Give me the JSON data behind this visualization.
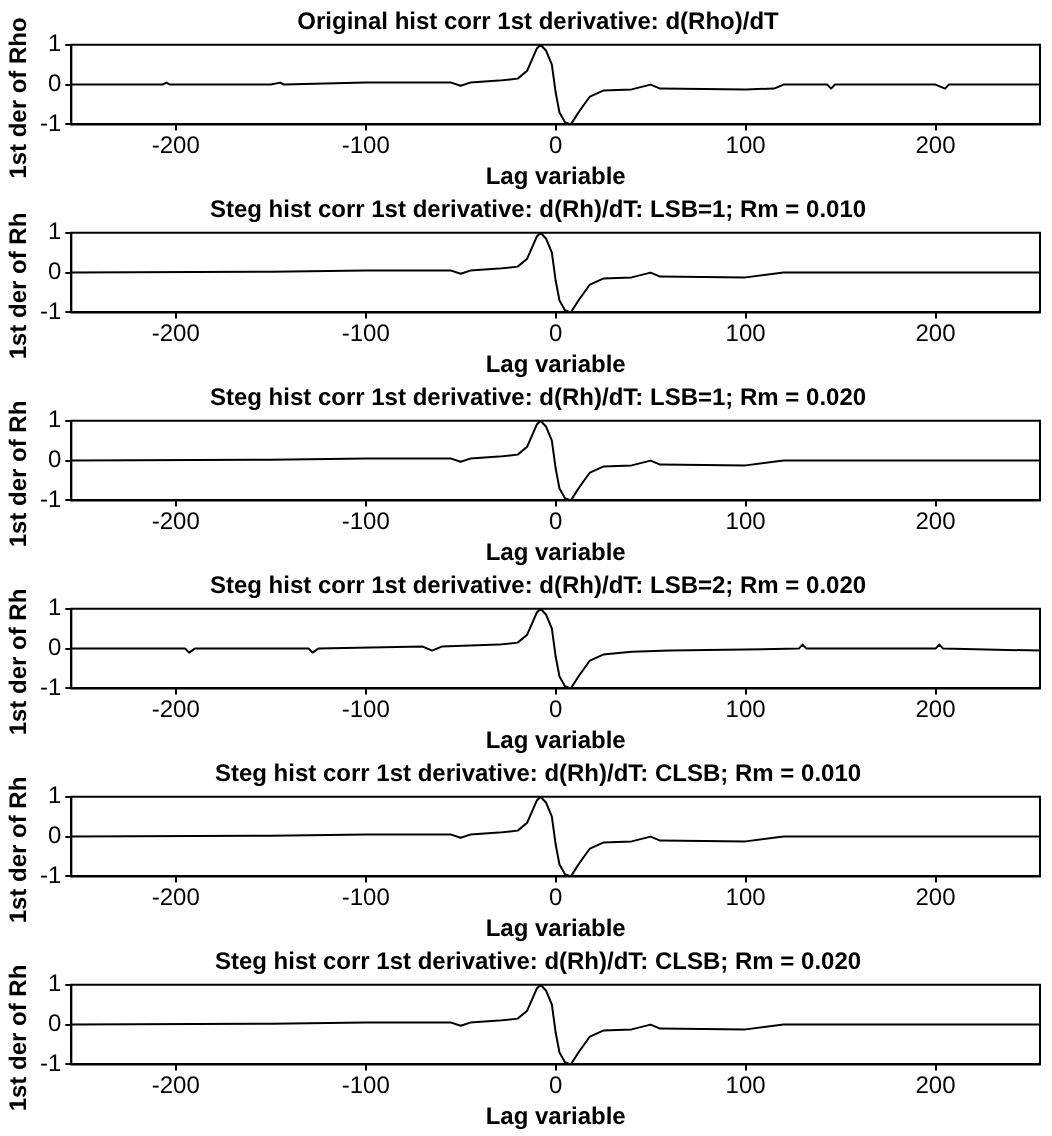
{
  "chart_data": [
    {
      "type": "line",
      "title": "Original hist corr 1st derivative: d(Rho)/dT",
      "xlabel": "Lag variable",
      "ylabel": "1st der of Rho",
      "xlim": [
        -255,
        255
      ],
      "xticks": [
        -200,
        -100,
        0,
        100,
        200
      ],
      "ylim": [
        -1,
        1
      ],
      "yticks": [
        -1,
        0,
        1
      ],
      "grid": false,
      "marker": "none",
      "x": [
        -255,
        -207,
        -205,
        -203,
        -150,
        -145,
        -143,
        -100,
        -55,
        -50,
        -45,
        -30,
        -20,
        -15,
        -10,
        -8,
        -5,
        -2,
        0,
        2,
        5,
        8,
        12,
        18,
        25,
        40,
        50,
        55,
        100,
        115,
        120,
        143,
        145,
        147,
        200,
        205,
        207,
        255
      ],
      "series": [
        {
          "color": "#000000",
          "values": [
            0,
            0,
            0.05,
            0,
            0,
            0.05,
            0,
            0.05,
            0.05,
            -0.03,
            0.05,
            0.1,
            0.15,
            0.35,
            0.9,
            1,
            0.85,
            0.5,
            -0.2,
            -0.7,
            -0.95,
            -1,
            -0.7,
            -0.3,
            -0.15,
            -0.12,
            0,
            -0.1,
            -0.12,
            -0.1,
            0,
            0,
            -0.1,
            0,
            0,
            -0.1,
            0,
            0
          ]
        }
      ]
    },
    {
      "type": "line",
      "title": "Steg hist corr 1st derivative: d(Rh)/dT: LSB=1; Rm = 0.010",
      "xlabel": "Lag variable",
      "ylabel": "1st der of Rh",
      "xlim": [
        -255,
        255
      ],
      "xticks": [
        -200,
        -100,
        0,
        100,
        200
      ],
      "ylim": [
        -1,
        1
      ],
      "yticks": [
        -1,
        0,
        1
      ],
      "grid": false,
      "marker": "none",
      "x": [
        -255,
        -150,
        -100,
        -55,
        -50,
        -45,
        -30,
        -20,
        -15,
        -10,
        -8,
        -5,
        -2,
        0,
        2,
        5,
        8,
        12,
        18,
        25,
        40,
        50,
        55,
        100,
        120,
        200,
        255
      ],
      "series": [
        {
          "color": "#000000",
          "values": [
            0,
            0.02,
            0.05,
            0.05,
            -0.03,
            0.05,
            0.1,
            0.15,
            0.35,
            0.9,
            1,
            0.85,
            0.5,
            -0.2,
            -0.7,
            -0.95,
            -1,
            -0.7,
            -0.3,
            -0.15,
            -0.12,
            0,
            -0.1,
            -0.12,
            0,
            0,
            0
          ]
        }
      ]
    },
    {
      "type": "line",
      "title": "Steg hist corr 1st derivative: d(Rh)/dT: LSB=1; Rm = 0.020",
      "xlabel": "Lag variable",
      "ylabel": "1st der of Rh",
      "xlim": [
        -255,
        255
      ],
      "xticks": [
        -200,
        -100,
        0,
        100,
        200
      ],
      "ylim": [
        -1,
        1
      ],
      "yticks": [
        -1,
        0,
        1
      ],
      "grid": false,
      "marker": "none",
      "x": [
        -255,
        -150,
        -100,
        -55,
        -50,
        -45,
        -30,
        -20,
        -15,
        -10,
        -8,
        -5,
        -2,
        0,
        2,
        5,
        8,
        12,
        18,
        25,
        40,
        50,
        55,
        100,
        120,
        200,
        255
      ],
      "series": [
        {
          "color": "#000000",
          "values": [
            0,
            0.02,
            0.05,
            0.05,
            -0.03,
            0.05,
            0.1,
            0.15,
            0.35,
            0.9,
            1,
            0.85,
            0.5,
            -0.2,
            -0.7,
            -0.95,
            -1,
            -0.7,
            -0.3,
            -0.15,
            -0.12,
            0,
            -0.1,
            -0.12,
            0,
            0,
            0
          ]
        }
      ]
    },
    {
      "type": "line",
      "title": "Steg hist corr 1st derivative: d(Rh)/dT: LSB=2; Rm = 0.020",
      "xlabel": "Lag variable",
      "ylabel": "1st der of Rh",
      "xlim": [
        -255,
        255
      ],
      "xticks": [
        -200,
        -100,
        0,
        100,
        200
      ],
      "ylim": [
        -1,
        1
      ],
      "yticks": [
        -1,
        0,
        1
      ],
      "grid": false,
      "marker": "none",
      "x": [
        -255,
        -195,
        -193,
        -190,
        -130,
        -128,
        -125,
        -70,
        -65,
        -60,
        -30,
        -20,
        -15,
        -10,
        -8,
        -5,
        -2,
        0,
        2,
        5,
        8,
        12,
        18,
        25,
        40,
        60,
        128,
        130,
        132,
        200,
        202,
        204,
        255
      ],
      "series": [
        {
          "color": "#000000",
          "values": [
            0,
            0,
            -0.1,
            0,
            0,
            -0.1,
            0,
            0.05,
            -0.05,
            0.05,
            0.1,
            0.15,
            0.35,
            0.9,
            1,
            0.85,
            0.5,
            -0.2,
            -0.7,
            -0.95,
            -1,
            -0.7,
            -0.3,
            -0.15,
            -0.08,
            -0.05,
            0,
            0.1,
            0,
            0,
            0.1,
            0,
            -0.05
          ]
        }
      ]
    },
    {
      "type": "line",
      "title": "Steg hist corr 1st derivative: d(Rh)/dT: CLSB; Rm = 0.010",
      "xlabel": "Lag variable",
      "ylabel": "1st der of Rh",
      "xlim": [
        -255,
        255
      ],
      "xticks": [
        -200,
        -100,
        0,
        100,
        200
      ],
      "ylim": [
        -1,
        1
      ],
      "yticks": [
        -1,
        0,
        1
      ],
      "grid": false,
      "marker": "none",
      "x": [
        -255,
        -150,
        -100,
        -55,
        -50,
        -45,
        -30,
        -20,
        -15,
        -10,
        -8,
        -5,
        -2,
        0,
        2,
        5,
        8,
        12,
        18,
        25,
        40,
        50,
        55,
        100,
        120,
        200,
        255
      ],
      "series": [
        {
          "color": "#000000",
          "values": [
            0,
            0.02,
            0.05,
            0.05,
            -0.03,
            0.05,
            0.1,
            0.15,
            0.35,
            0.9,
            1,
            0.85,
            0.5,
            -0.2,
            -0.7,
            -0.95,
            -1,
            -0.7,
            -0.3,
            -0.15,
            -0.12,
            0,
            -0.1,
            -0.12,
            0,
            0,
            0
          ]
        }
      ]
    },
    {
      "type": "line",
      "title": "Steg hist corr 1st derivative: d(Rh)/dT: CLSB; Rm = 0.020",
      "xlabel": "Lag variable",
      "ylabel": "1st der of Rh",
      "xlim": [
        -255,
        255
      ],
      "xticks": [
        -200,
        -100,
        0,
        100,
        200
      ],
      "ylim": [
        -1,
        1
      ],
      "yticks": [
        -1,
        0,
        1
      ],
      "grid": false,
      "marker": "none",
      "x": [
        -255,
        -150,
        -100,
        -55,
        -50,
        -45,
        -30,
        -20,
        -15,
        -10,
        -8,
        -5,
        -2,
        0,
        2,
        5,
        8,
        12,
        18,
        25,
        40,
        50,
        55,
        100,
        120,
        200,
        255
      ],
      "series": [
        {
          "color": "#000000",
          "values": [
            0,
            0.02,
            0.05,
            0.05,
            -0.03,
            0.05,
            0.1,
            0.15,
            0.35,
            0.9,
            1,
            0.85,
            0.5,
            -0.2,
            -0.7,
            -0.95,
            -1,
            -0.7,
            -0.3,
            -0.15,
            -0.12,
            0,
            -0.1,
            -0.12,
            0,
            0,
            0
          ]
        }
      ]
    }
  ]
}
